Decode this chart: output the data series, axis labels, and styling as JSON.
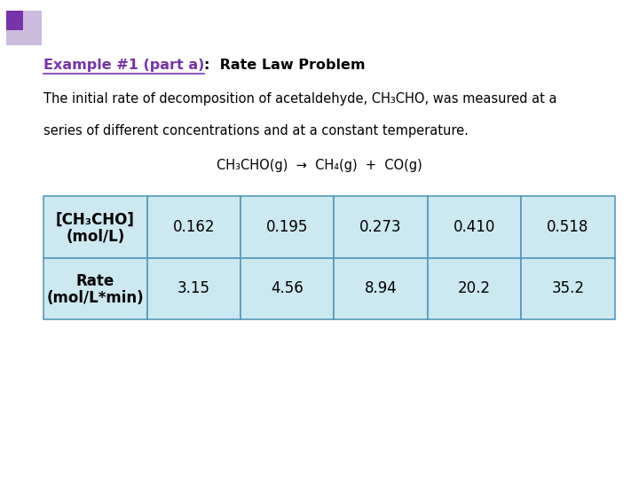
{
  "title_part1": "Example #1 (part a)",
  "title_part2": ":  Rate Law Problem",
  "description_line1": "The initial rate of decomposition of acetaldehyde, CH₃CHO, was measured at a",
  "description_line2": "series of different concentrations and at a constant temperature.",
  "equation": "CH₃CHO(g)  →  CH₄(g)  +  CO(g)",
  "row1_header_line1": "[CH₃CHO]",
  "row1_header_line2": "(mol/L)",
  "row2_header_line1": "Rate",
  "row2_header_line2": "(mol/L*min)",
  "row1_values": [
    "0.162",
    "0.195",
    "0.273",
    "0.410",
    "0.518"
  ],
  "row2_values": [
    "3.15",
    "4.56",
    "8.94",
    "20.2",
    "35.2"
  ],
  "table_bg_color": "#cce8f0",
  "table_border_color": "#5599bb",
  "title_color": "#7733aa",
  "text_color": "#000000",
  "bg_color": "#ffffff",
  "decoration_color1": "#ccbbdd",
  "decoration_color2": "#7733aa",
  "title_fontsize": 11.5,
  "body_fontsize": 10.5,
  "table_fontsize": 12,
  "eq_fontsize": 10.5
}
